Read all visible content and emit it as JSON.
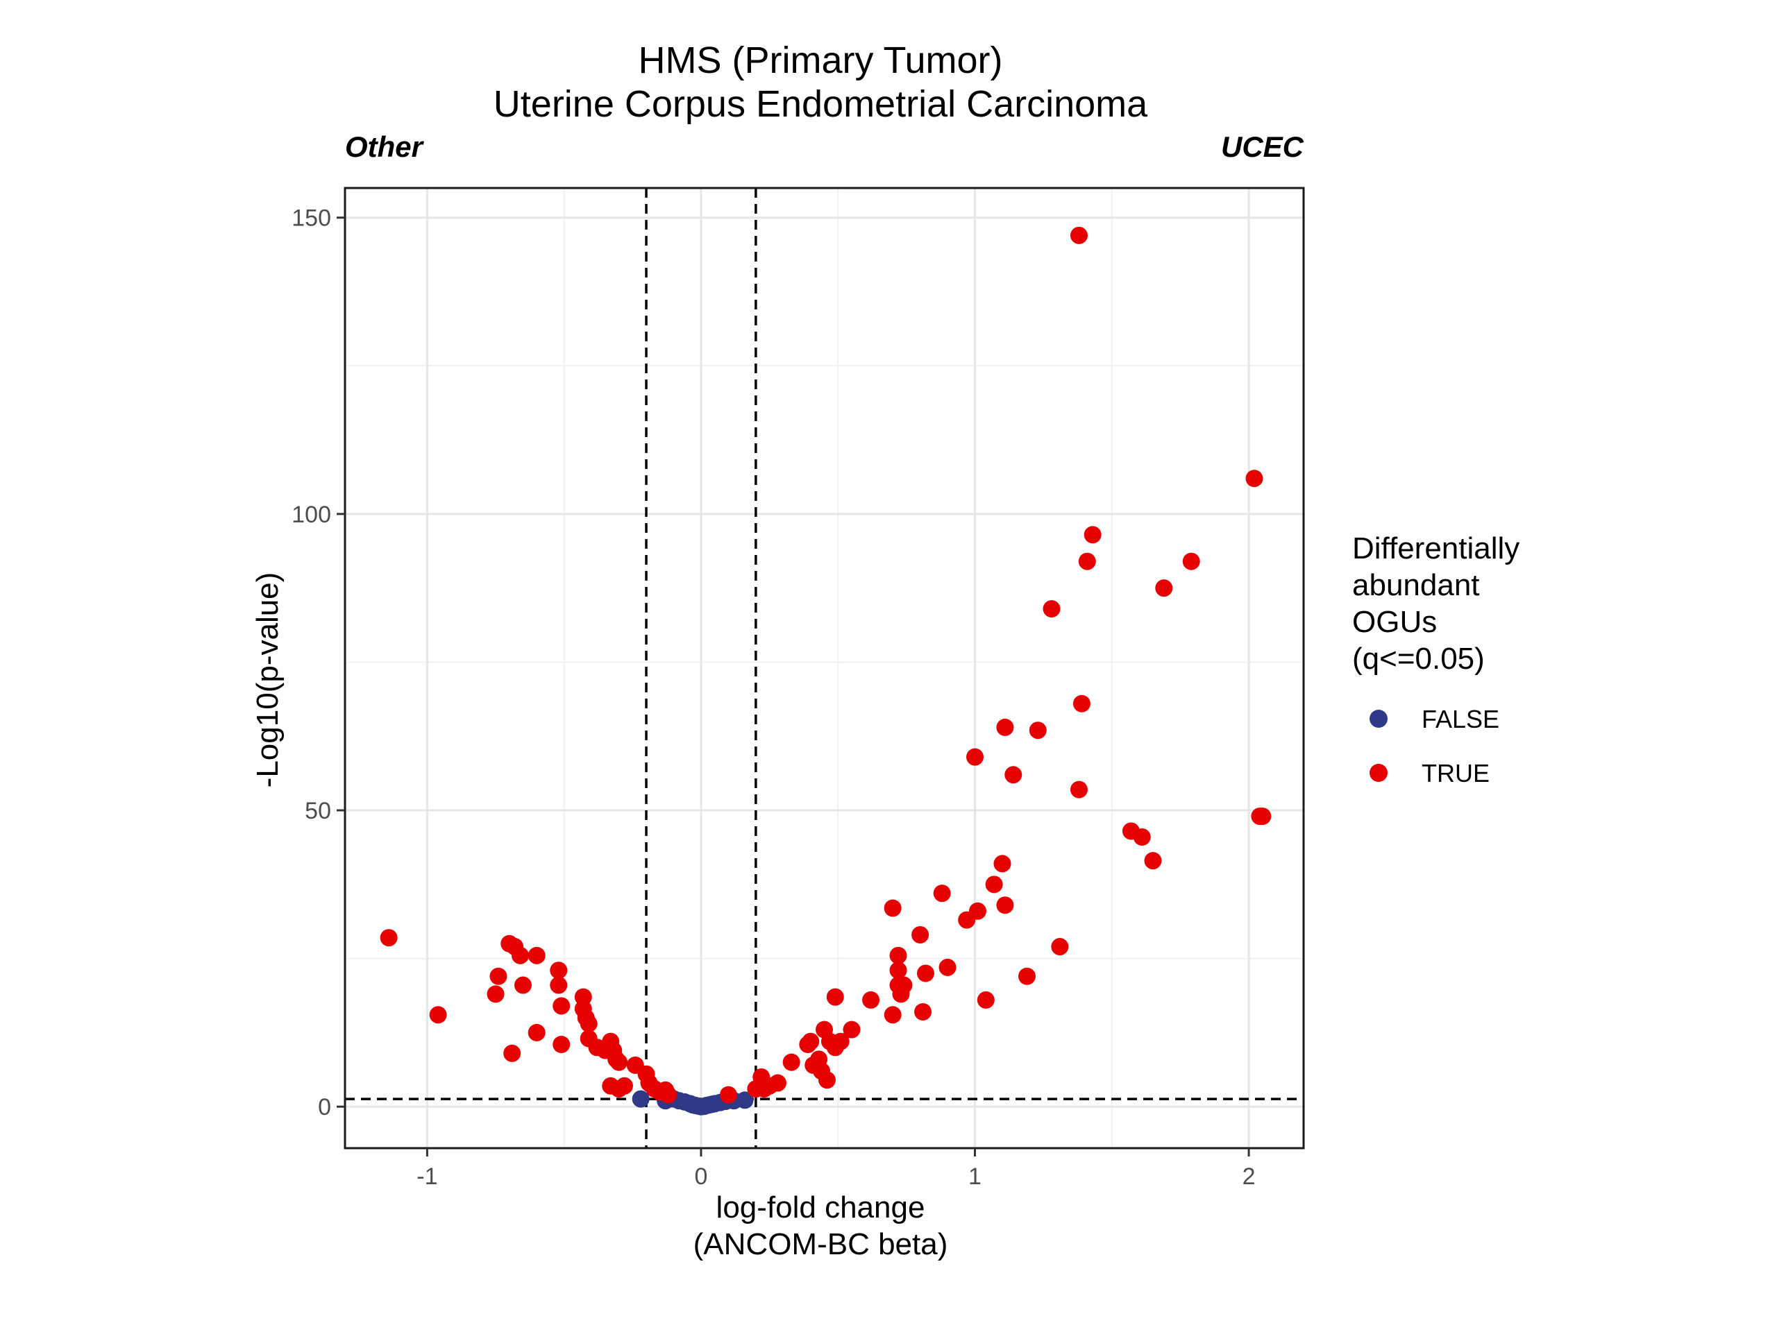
{
  "chart_data": {
    "type": "scatter",
    "title": "HMS (Primary Tumor)",
    "subtitle": "Uterine Corpus Endometrial Carcinoma",
    "corner_left": "Other",
    "corner_right": "UCEC",
    "xlabel_line1": "log-fold change",
    "xlabel_line2": "(ANCOM-BC beta)",
    "ylabel": "-Log10(p-value)",
    "xlim": [
      -1.3,
      2.2
    ],
    "ylim": [
      -7,
      155
    ],
    "x_ticks": [
      -1,
      0,
      1,
      2
    ],
    "x_tick_labels": [
      "-1",
      "0",
      "1",
      "2"
    ],
    "y_ticks": [
      0,
      50,
      100,
      150
    ],
    "y_tick_labels": [
      "0",
      "50",
      "100",
      "150"
    ],
    "grid": true,
    "reference_lines": {
      "x": [
        -0.2,
        0.2
      ],
      "y": [
        1.3
      ]
    },
    "legend": {
      "title_lines": [
        "Differentially",
        "abundant",
        "OGUs",
        "(q<=0.05)"
      ],
      "placement": "right",
      "entries": [
        {
          "label": "FALSE",
          "color": "#2e3a87"
        },
        {
          "label": "TRUE",
          "color": "#e60000"
        }
      ]
    },
    "series": [
      {
        "name": "FALSE",
        "color": "#2e3a87",
        "points": [
          [
            -0.22,
            1.3
          ],
          [
            -0.13,
            1.0
          ],
          [
            -0.1,
            1.3
          ],
          [
            -0.08,
            1.0
          ],
          [
            -0.06,
            0.8
          ],
          [
            -0.04,
            0.5
          ],
          [
            -0.03,
            0.3
          ],
          [
            -0.02,
            0.2
          ],
          [
            -0.01,
            0.1
          ],
          [
            0.0,
            0.0
          ],
          [
            0.01,
            0.05
          ],
          [
            0.02,
            0.2
          ],
          [
            0.03,
            0.3
          ],
          [
            0.04,
            0.4
          ],
          [
            0.05,
            0.5
          ],
          [
            0.07,
            0.7
          ],
          [
            0.09,
            0.9
          ],
          [
            0.12,
            1.0
          ],
          [
            0.16,
            1.1
          ]
        ]
      },
      {
        "name": "TRUE",
        "color": "#e60000",
        "points": [
          [
            -1.14,
            28.5
          ],
          [
            -0.96,
            15.5
          ],
          [
            -0.74,
            22
          ],
          [
            -0.75,
            19
          ],
          [
            -0.7,
            27.5
          ],
          [
            -0.68,
            27
          ],
          [
            -0.66,
            25.5
          ],
          [
            -0.65,
            20.5
          ],
          [
            -0.6,
            25.5
          ],
          [
            -0.6,
            12.5
          ],
          [
            -0.69,
            9
          ],
          [
            -0.52,
            23
          ],
          [
            -0.52,
            20.5
          ],
          [
            -0.51,
            17
          ],
          [
            -0.51,
            10.5
          ],
          [
            -0.43,
            18.5
          ],
          [
            -0.43,
            16.5
          ],
          [
            -0.42,
            15
          ],
          [
            -0.41,
            14
          ],
          [
            -0.41,
            11.5
          ],
          [
            -0.38,
            10
          ],
          [
            -0.35,
            9.5
          ],
          [
            -0.33,
            11
          ],
          [
            -0.32,
            9.5
          ],
          [
            -0.31,
            8
          ],
          [
            -0.3,
            7.5
          ],
          [
            -0.33,
            3.5
          ],
          [
            -0.3,
            3
          ],
          [
            -0.28,
            3.5
          ],
          [
            -0.24,
            7
          ],
          [
            -0.2,
            5.5
          ],
          [
            -0.19,
            4
          ],
          [
            -0.17,
            3
          ],
          [
            -0.15,
            2.5
          ],
          [
            -0.13,
            2.8
          ],
          [
            -0.12,
            2
          ],
          [
            0.1,
            2
          ],
          [
            0.2,
            3
          ],
          [
            0.22,
            5
          ],
          [
            0.23,
            3
          ],
          [
            0.25,
            3.5
          ],
          [
            0.28,
            4
          ],
          [
            0.33,
            7.5
          ],
          [
            0.39,
            10.5
          ],
          [
            0.4,
            11
          ],
          [
            0.41,
            7
          ],
          [
            0.43,
            8
          ],
          [
            0.44,
            6
          ],
          [
            0.45,
            13
          ],
          [
            0.46,
            4.5
          ],
          [
            0.47,
            11
          ],
          [
            0.49,
            18.5
          ],
          [
            0.49,
            10
          ],
          [
            0.51,
            11
          ],
          [
            0.55,
            13
          ],
          [
            0.62,
            18
          ],
          [
            0.7,
            33.5
          ],
          [
            0.7,
            15.5
          ],
          [
            0.72,
            25.5
          ],
          [
            0.72,
            23
          ],
          [
            0.72,
            20.5
          ],
          [
            0.73,
            19
          ],
          [
            0.74,
            20.5
          ],
          [
            0.8,
            29
          ],
          [
            0.81,
            16
          ],
          [
            0.82,
            22.5
          ],
          [
            0.88,
            36
          ],
          [
            0.9,
            23.5
          ],
          [
            0.97,
            31.5
          ],
          [
            1.0,
            59
          ],
          [
            1.01,
            33
          ],
          [
            1.04,
            18
          ],
          [
            1.07,
            37.5
          ],
          [
            1.1,
            41
          ],
          [
            1.11,
            64
          ],
          [
            1.11,
            34
          ],
          [
            1.14,
            56
          ],
          [
            1.19,
            22
          ],
          [
            1.23,
            63.5
          ],
          [
            1.28,
            84
          ],
          [
            1.31,
            27
          ],
          [
            1.38,
            53.5
          ],
          [
            1.39,
            68
          ],
          [
            1.38,
            147
          ],
          [
            1.41,
            92
          ],
          [
            1.43,
            96.5
          ],
          [
            1.57,
            46.5
          ],
          [
            1.61,
            45.5
          ],
          [
            1.65,
            41.5
          ],
          [
            1.69,
            87.5
          ],
          [
            1.79,
            92
          ],
          [
            2.02,
            106
          ],
          [
            2.04,
            49
          ],
          [
            2.05,
            49
          ]
        ]
      }
    ]
  }
}
